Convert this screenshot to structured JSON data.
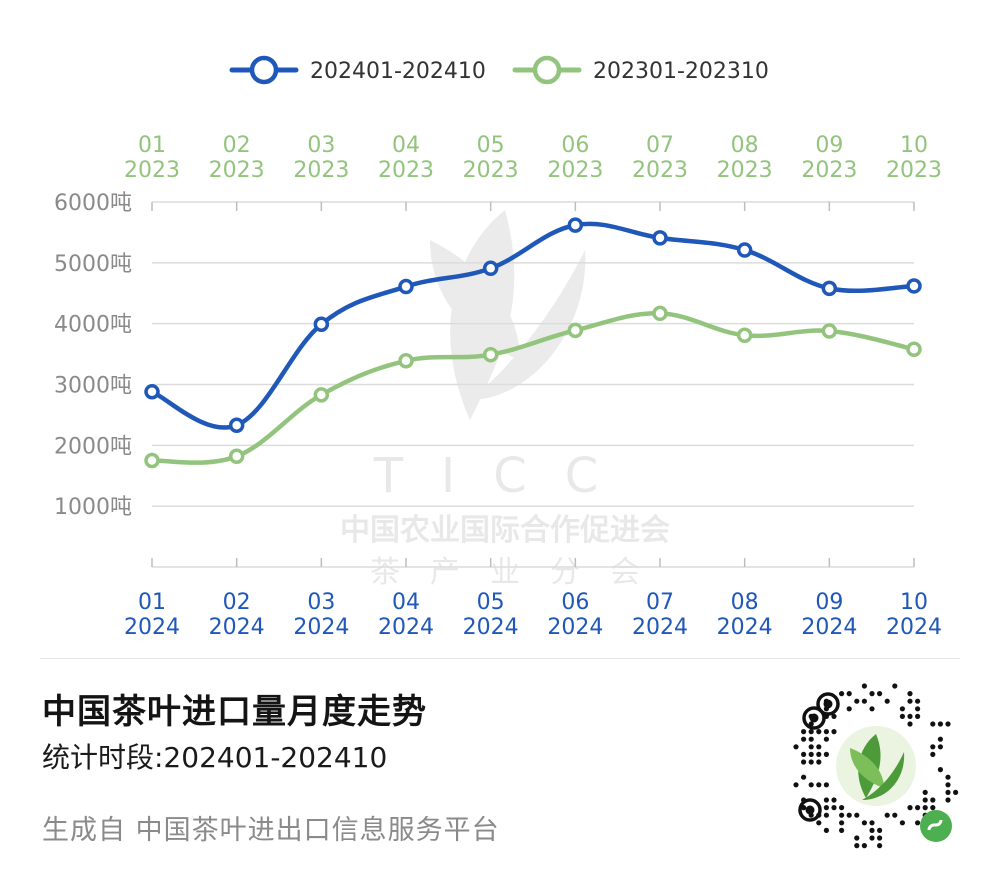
{
  "chart_data": {
    "type": "line",
    "categories_bottom": [
      [
        "01",
        "2024"
      ],
      [
        "02",
        "2024"
      ],
      [
        "03",
        "2024"
      ],
      [
        "04",
        "2024"
      ],
      [
        "05",
        "2024"
      ],
      [
        "06",
        "2024"
      ],
      [
        "07",
        "2024"
      ],
      [
        "08",
        "2024"
      ],
      [
        "09",
        "2024"
      ],
      [
        "10",
        "2024"
      ]
    ],
    "categories_top": [
      [
        "01",
        "2023"
      ],
      [
        "02",
        "2023"
      ],
      [
        "03",
        "2023"
      ],
      [
        "04",
        "2023"
      ],
      [
        "05",
        "2023"
      ],
      [
        "06",
        "2023"
      ],
      [
        "07",
        "2023"
      ],
      [
        "08",
        "2023"
      ],
      [
        "09",
        "2023"
      ],
      [
        "10",
        "2023"
      ]
    ],
    "series": [
      {
        "name": "202401-202410",
        "color": "#1f58b8",
        "values": [
          2880,
          2330,
          3990,
          4610,
          4910,
          5620,
          5410,
          5210,
          4580,
          4620
        ]
      },
      {
        "name": "202301-202310",
        "color": "#93c47d",
        "values": [
          1750,
          1820,
          2830,
          3390,
          3490,
          3890,
          4170,
          3810,
          3880,
          3580
        ]
      }
    ],
    "y_ticks": [
      "1000吨",
      "2000吨",
      "3000吨",
      "4000吨",
      "5000吨",
      "6000吨"
    ],
    "ylim": [
      0,
      6000
    ],
    "grid": true,
    "legend": "top-center"
  },
  "watermark": {
    "brand": "TICC",
    "line1": "中国农业国际合作促进会",
    "line2": "茶　产　业　分　会"
  },
  "footer": {
    "title": "中国茶叶进口量月度走势",
    "subtitle": "统计时段:202401-202410",
    "source": "生成自 中国茶叶进出口信息服务平台"
  },
  "colors": {
    "series_2024": "#1f58b8",
    "series_2023": "#93c47d",
    "grid": "#dcdcdc",
    "tick_text": "#8a8a8a"
  }
}
